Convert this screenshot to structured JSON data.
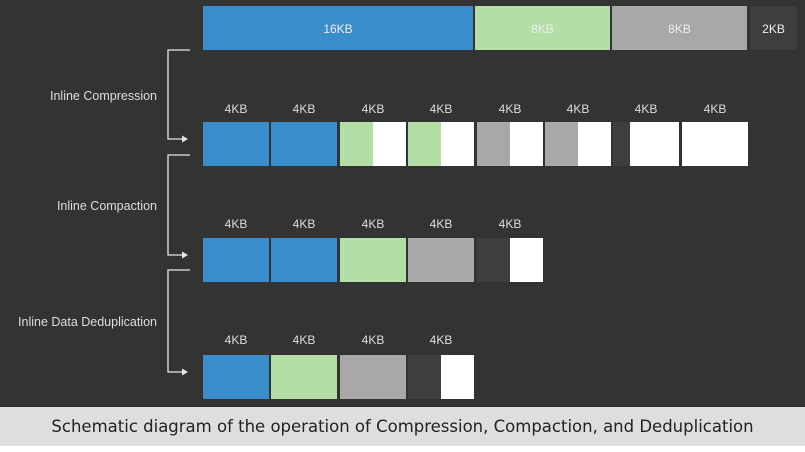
{
  "colors": {
    "background": "#333333",
    "blue": "#3a8dcb",
    "green": "#b3dfa7",
    "gray": "#a8a8a8",
    "dark": "#3e3e3e",
    "white": "#ffffff",
    "text": "#dddddd"
  },
  "source": {
    "blocks": [
      {
        "label": "16KB",
        "color": "blue"
      },
      {
        "label": "8KB",
        "color": "green"
      },
      {
        "label": "8KB",
        "color": "gray"
      },
      {
        "label": "2KB",
        "color": "dark"
      }
    ]
  },
  "stages": [
    {
      "label": "Inline Compression",
      "blocks": [
        {
          "label": "4KB",
          "fill": "blue",
          "fraction": 1
        },
        {
          "label": "4KB",
          "fill": "blue",
          "fraction": 1
        },
        {
          "label": "4KB",
          "fill": "green",
          "fraction": 0.5
        },
        {
          "label": "4KB",
          "fill": "green",
          "fraction": 0.5
        },
        {
          "label": "4KB",
          "fill": "gray",
          "fraction": 0.5
        },
        {
          "label": "4KB",
          "fill": "gray",
          "fraction": 0.5
        },
        {
          "label": "4KB",
          "fill": "dark",
          "fraction": 0.25
        },
        {
          "label": "4KB",
          "fill": "none",
          "fraction": 0
        }
      ]
    },
    {
      "label": "Inline Compaction",
      "blocks": [
        {
          "label": "4KB",
          "fill": "blue",
          "fraction": 1
        },
        {
          "label": "4KB",
          "fill": "blue",
          "fraction": 1
        },
        {
          "label": "4KB",
          "fill": "green",
          "fraction": 1
        },
        {
          "label": "4KB",
          "fill": "gray",
          "fraction": 1
        },
        {
          "label": "4KB",
          "fill": "dark",
          "fraction": 0.5
        }
      ]
    },
    {
      "label": "Inline Data Deduplication",
      "blocks": [
        {
          "label": "4KB",
          "fill": "blue",
          "fraction": 1
        },
        {
          "label": "4KB",
          "fill": "green",
          "fraction": 1
        },
        {
          "label": "4KB",
          "fill": "gray",
          "fraction": 1
        },
        {
          "label": "4KB",
          "fill": "dark",
          "fraction": 0.5
        }
      ]
    }
  ],
  "caption": "Schematic diagram of the operation of Compression, Compaction, and Deduplication"
}
